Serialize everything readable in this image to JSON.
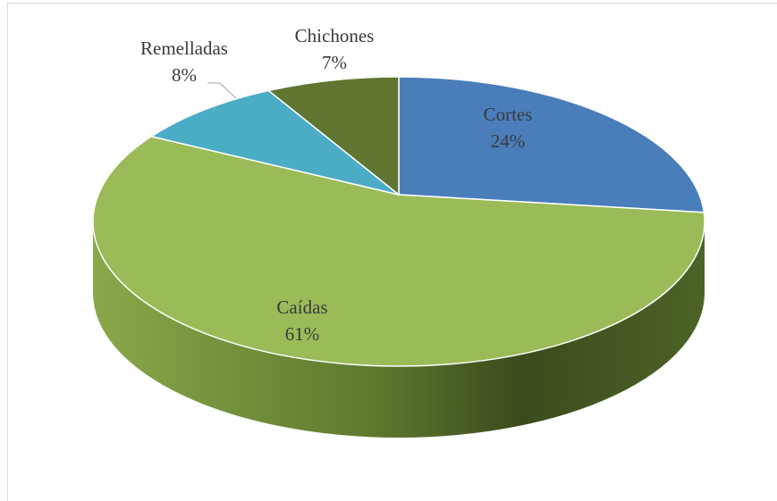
{
  "chart_data": {
    "type": "pie",
    "categories": [
      "Cortes",
      "Caídas",
      "Remelladas",
      "Chichones"
    ],
    "values": [
      24,
      61,
      8,
      7
    ],
    "value_labels": [
      "24%",
      "61%",
      "8%",
      "7%"
    ],
    "colors": [
      "#4a7ebb",
      "#9bbb59",
      "#4bacc6",
      "#5f7530"
    ]
  }
}
